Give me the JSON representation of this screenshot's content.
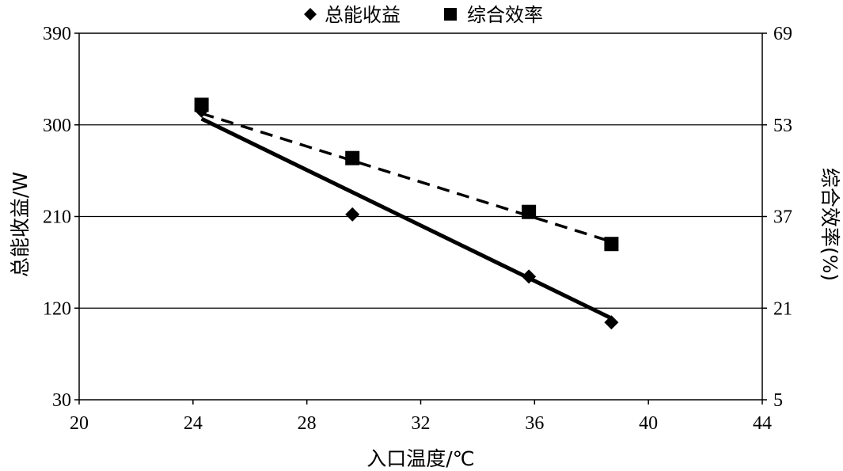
{
  "chart_data": {
    "type": "scatter",
    "title": "",
    "xlabel": "入口温度/℃",
    "ylabel_left": "总能收益/W",
    "ylabel_right": "综合效率(%)",
    "x_ticks": [
      "20",
      "24",
      "28",
      "32",
      "36",
      "40",
      "44"
    ],
    "y_left_ticks": [
      "30",
      "120",
      "210",
      "300",
      "390"
    ],
    "y_right_ticks": [
      "5",
      "21",
      "37",
      "53",
      "69"
    ],
    "xlim": [
      20,
      44
    ],
    "ylim_left": [
      30,
      390
    ],
    "ylim_right": [
      5,
      69
    ],
    "grid": "horizontal",
    "legend_position": "top-center",
    "series": [
      {
        "name": "总能收益",
        "axis": "left",
        "marker": "diamond",
        "color": "#000000",
        "x": [
          24.3,
          29.6,
          35.8,
          38.7
        ],
        "y": [
          314,
          212,
          151,
          106
        ],
        "trendline": {
          "style": "solid",
          "x": [
            24.3,
            38.7
          ],
          "y": [
            306,
            110
          ]
        }
      },
      {
        "name": "综合效率",
        "axis": "right",
        "marker": "square",
        "color": "#000000",
        "x": [
          24.3,
          29.6,
          35.8,
          38.7
        ],
        "y": [
          56.5,
          47.2,
          37.8,
          32.2
        ],
        "trendline": {
          "style": "dashed",
          "x": [
            24.3,
            38.7
          ],
          "y": [
            55.0,
            32.6
          ]
        }
      }
    ]
  }
}
